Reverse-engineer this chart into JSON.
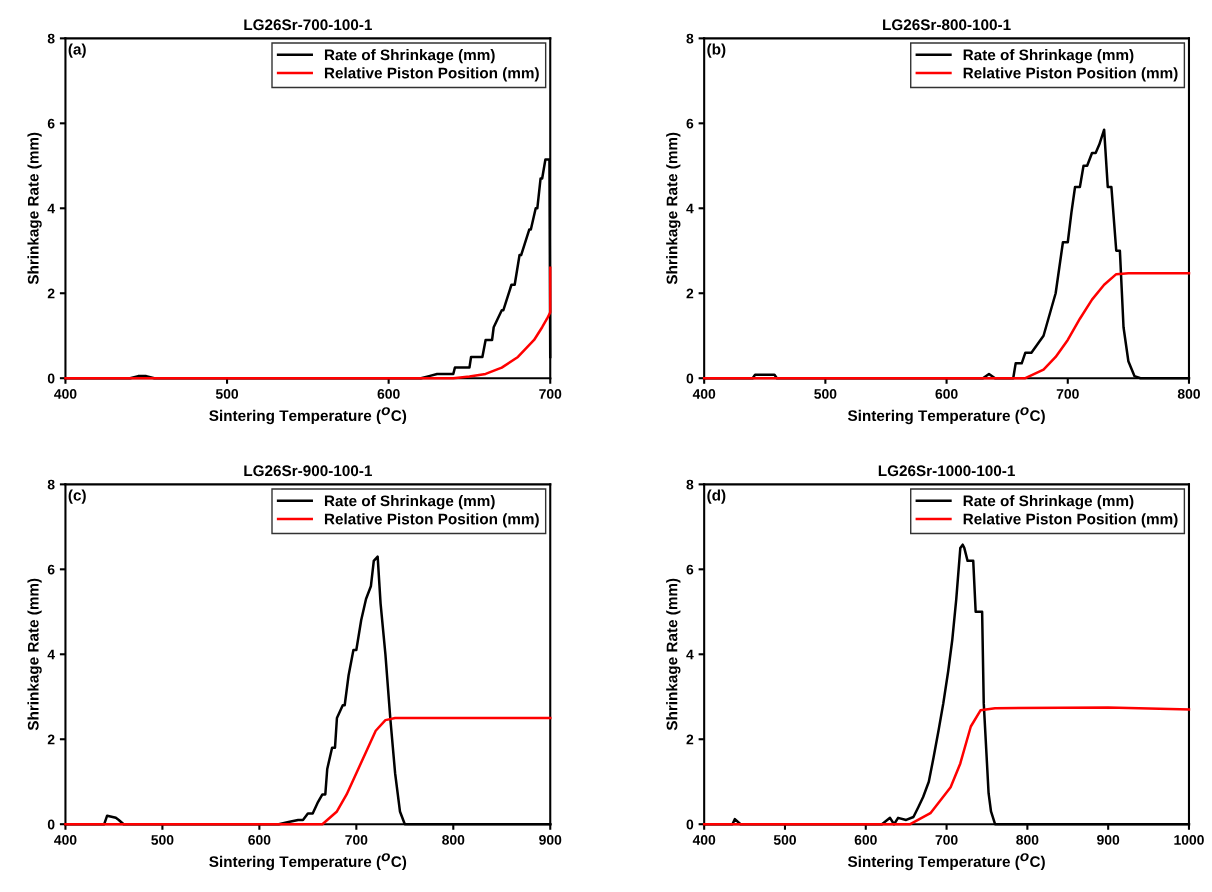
{
  "chart_data": [
    {
      "type": "line",
      "title": "LG26Sr-700-100-1",
      "xlabel": "Sintering Temperature ($^{O}$C)",
      "ylabel": "Shrinkage Rate (mm)",
      "annotations": [
        "(a)"
      ],
      "xlim": [
        400,
        700
      ],
      "xticks": [
        400,
        500,
        600,
        700
      ],
      "ylim": [
        0,
        8
      ],
      "yticks": [
        0,
        2,
        4,
        6,
        8
      ],
      "legend": "top right",
      "grid": false,
      "series": [
        {
          "name": "Rate of Shrinkage (mm)",
          "color": "#000000",
          "x": [
            400,
            440,
            445,
            450,
            455,
            600,
            620,
            625,
            630,
            640,
            641,
            650,
            651,
            658,
            660,
            664,
            665,
            670,
            671,
            676,
            678,
            681,
            682,
            687,
            688,
            691,
            692,
            694,
            695,
            697,
            698,
            699.5,
            700
          ],
          "values": [
            0,
            0,
            0.05,
            0.05,
            0,
            0,
            0,
            0.05,
            0.1,
            0.1,
            0.25,
            0.25,
            0.5,
            0.5,
            0.9,
            0.9,
            1.2,
            1.6,
            1.6,
            2.2,
            2.2,
            2.9,
            2.9,
            3.5,
            3.5,
            4.0,
            4.0,
            4.7,
            4.7,
            5.15,
            5.15,
            5.15,
            0.5
          ]
        },
        {
          "name": "Relative Piston Position (mm)",
          "color": "#ff0000",
          "x": [
            400,
            415,
            640,
            650,
            660,
            670,
            680,
            685,
            690,
            695,
            698,
            700,
            700
          ],
          "values": [
            0,
            0,
            0,
            0.04,
            0.1,
            0.25,
            0.5,
            0.7,
            0.9,
            1.2,
            1.4,
            1.55,
            2.6
          ]
        }
      ]
    },
    {
      "type": "line",
      "title": "LG26Sr-800-100-1",
      "xlabel": "Sintering Temperature ($^{O}$C)",
      "ylabel": "Shrinkage Rate (mm)",
      "annotations": [
        "(b)"
      ],
      "xlim": [
        400,
        800
      ],
      "xticks": [
        400,
        500,
        600,
        700,
        800
      ],
      "ylim": [
        0,
        8
      ],
      "yticks": [
        0,
        2,
        4,
        6,
        8
      ],
      "legend": "top right",
      "grid": false,
      "series": [
        {
          "name": "Rate of Shrinkage (mm)",
          "color": "#000000",
          "x": [
            400,
            440,
            442,
            458,
            460,
            580,
            630,
            635,
            640,
            655,
            657,
            662,
            665,
            670,
            675,
            680,
            683,
            686,
            690,
            693,
            696,
            700,
            703,
            706,
            710,
            713,
            716,
            720,
            723,
            726,
            730,
            733,
            736,
            740,
            743,
            746,
            750,
            755,
            760,
            800
          ],
          "values": [
            0,
            0,
            0.08,
            0.08,
            0,
            0,
            0,
            0.1,
            0,
            0,
            0.35,
            0.35,
            0.6,
            0.6,
            0.8,
            1.0,
            1.3,
            1.6,
            2.0,
            2.6,
            3.2,
            3.2,
            3.9,
            4.5,
            4.5,
            5.0,
            5.0,
            5.3,
            5.3,
            5.5,
            5.85,
            4.5,
            4.5,
            3.0,
            3.0,
            1.2,
            0.4,
            0.05,
            0,
            0
          ]
        },
        {
          "name": "Relative Piston Position (mm)",
          "color": "#ff0000",
          "x": [
            400,
            665,
            680,
            690,
            700,
            710,
            720,
            730,
            740,
            750,
            800
          ],
          "values": [
            0,
            0,
            0.2,
            0.5,
            0.9,
            1.4,
            1.85,
            2.2,
            2.45,
            2.47,
            2.47
          ]
        }
      ]
    },
    {
      "type": "line",
      "title": "LG26Sr-900-100-1",
      "xlabel": "Sintering Temperature ($^{O}$C)",
      "ylabel": "Shrinkage Rate (mm)",
      "annotations": [
        "(c)"
      ],
      "xlim": [
        400,
        900
      ],
      "xticks": [
        400,
        500,
        600,
        700,
        800,
        900
      ],
      "ylim": [
        0,
        8
      ],
      "yticks": [
        0,
        2,
        4,
        6,
        8
      ],
      "legend": "top right",
      "grid": false,
      "series": [
        {
          "name": "Rate of Shrinkage (mm)",
          "color": "#000000",
          "x": [
            400,
            440,
            443,
            452,
            455,
            460,
            620,
            630,
            640,
            645,
            650,
            655,
            660,
            665,
            668,
            670,
            675,
            678,
            680,
            686,
            688,
            692,
            697,
            700,
            705,
            710,
            715,
            718,
            722,
            725,
            730,
            735,
            740,
            745,
            750,
            900
          ],
          "values": [
            0,
            0,
            0.2,
            0.15,
            0.1,
            0,
            0,
            0.05,
            0.1,
            0.1,
            0.25,
            0.25,
            0.5,
            0.7,
            0.7,
            1.3,
            1.8,
            1.8,
            2.5,
            2.8,
            2.8,
            3.5,
            4.1,
            4.1,
            4.8,
            5.3,
            5.6,
            6.2,
            6.3,
            5.2,
            4.0,
            2.5,
            1.2,
            0.3,
            0,
            0
          ]
        },
        {
          "name": "Relative Piston Position (mm)",
          "color": "#ff0000",
          "x": [
            400,
            665,
            680,
            690,
            700,
            710,
            720,
            730,
            740,
            900
          ],
          "values": [
            0,
            0,
            0.3,
            0.7,
            1.2,
            1.7,
            2.2,
            2.45,
            2.5,
            2.5
          ]
        }
      ]
    },
    {
      "type": "line",
      "title": "LG26Sr-1000-100-1",
      "xlabel": "Sintering Temperature ($^{O}$C)",
      "ylabel": "Shrinkage Rate (mm)",
      "annotations": [
        "(d)"
      ],
      "xlim": [
        400,
        1000
      ],
      "xticks": [
        400,
        500,
        600,
        700,
        800,
        900,
        1000
      ],
      "ylim": [
        0,
        8
      ],
      "yticks": [
        0,
        2,
        4,
        6,
        8
      ],
      "legend": "top right",
      "grid": false,
      "series": [
        {
          "name": "Rate of Shrinkage (mm)",
          "color": "#000000",
          "x": [
            400,
            435,
            438,
            445,
            620,
            630,
            635,
            640,
            650,
            659,
            665,
            671,
            678,
            684,
            690,
            696,
            702,
            707,
            712,
            717,
            720,
            722,
            726,
            733,
            736,
            744,
            746,
            752,
            755,
            760,
            1000
          ],
          "values": [
            0,
            0,
            0.12,
            0,
            0,
            0.15,
            0,
            0.15,
            0.1,
            0.17,
            0.4,
            0.64,
            1.0,
            1.58,
            2.2,
            2.85,
            3.6,
            4.33,
            5.3,
            6.5,
            6.58,
            6.5,
            6.2,
            6.2,
            5.0,
            5.0,
            2.85,
            0.73,
            0.3,
            0,
            0
          ]
        },
        {
          "name": "Relative Piston Position (mm)",
          "color": "#ff0000",
          "x": [
            400,
            655,
            680,
            705,
            717,
            730,
            742,
            760,
            900,
            1000
          ],
          "values": [
            0,
            0,
            0.26,
            0.87,
            1.43,
            2.3,
            2.68,
            2.73,
            2.75,
            2.7
          ]
        }
      ]
    }
  ]
}
